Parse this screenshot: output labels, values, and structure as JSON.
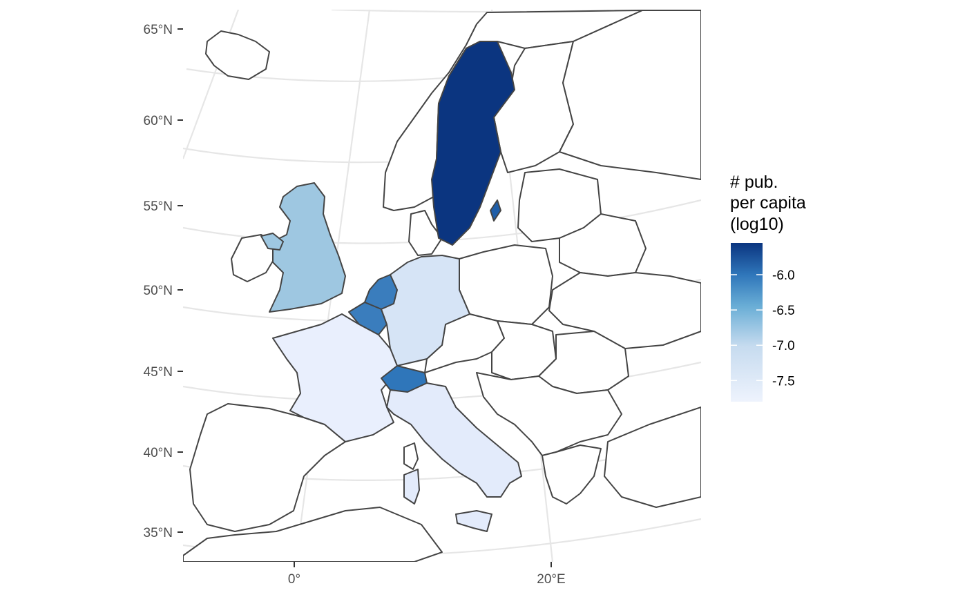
{
  "legend": {
    "title_lines": [
      "# pub.",
      "per capita",
      "(log10)"
    ],
    "ticks": [
      "-6.0",
      "-6.5",
      "-7.0",
      "-7.5"
    ],
    "tick_values": [
      -6.0,
      -6.5,
      -7.0,
      -7.5
    ],
    "range": [
      -7.8,
      -5.55
    ],
    "color_low": "#eef3fd",
    "color_high": "#0b3580"
  },
  "axes": {
    "lat_labels": [
      "65°N",
      "60°N",
      "55°N",
      "50°N",
      "45°N",
      "40°N",
      "35°N"
    ],
    "lon_labels": [
      "0°",
      "20°E"
    ]
  },
  "chart_data": {
    "type": "choropleth",
    "region": "Europe",
    "colored_countries": [
      {
        "name": "Sweden",
        "color": "#0b3580",
        "value": -5.6
      },
      {
        "name": "Netherlands",
        "color": "#3a7dbd",
        "value": -6.35
      },
      {
        "name": "Belgium",
        "color": "#3a7dbd",
        "value": -6.35
      },
      {
        "name": "Switzerland",
        "color": "#2f76ba",
        "value": -6.3
      },
      {
        "name": "United Kingdom",
        "color": "#9ec7e1",
        "value": -7.05
      },
      {
        "name": "Germany",
        "color": "#d6e4f6",
        "value": -7.5
      },
      {
        "name": "France",
        "color": "#e9effd",
        "value": -7.7
      },
      {
        "name": "Italy",
        "color": "#e3ebfb",
        "value": -7.65
      }
    ],
    "uncolored_fill": "#ffffff"
  }
}
